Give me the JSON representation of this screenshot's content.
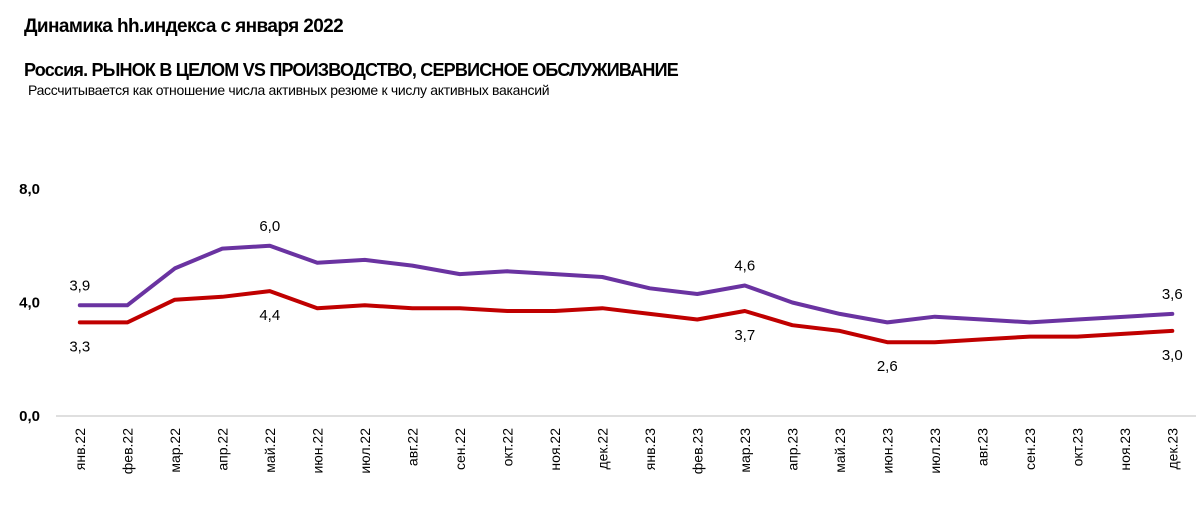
{
  "header": {
    "title": "Динамика hh.индекса с января 2022",
    "subtitle": "Россия. РЫНОК В ЦЕЛОМ VS ПРОИЗВОДСТВО, СЕРВИСНОЕ ОБСЛУЖИВАНИЕ",
    "note": "Рассчитывается как отношение числа активных резюме к числу активных вакансий"
  },
  "chart_data": {
    "type": "line",
    "title": "Динамика hh.индекса с января 2022",
    "xlabel": "",
    "ylabel": "",
    "ylim": [
      0,
      8
    ],
    "yticks": [
      "0,0",
      "4,0",
      "8,0"
    ],
    "categories": [
      "янв.22",
      "фев.22",
      "мар.22",
      "апр.22",
      "май.22",
      "июн.22",
      "июл.22",
      "авг.22",
      "сен.22",
      "окт.22",
      "ноя.22",
      "дек.22",
      "янв.23",
      "фев.23",
      "мар.23",
      "апр.23",
      "май.23",
      "июн.23",
      "июл.23",
      "авг.23",
      "сен.23",
      "окт.23",
      "ноя.23",
      "дек.23"
    ],
    "series": [
      {
        "name": "Рынок в целом",
        "color": "#6a33a1",
        "values": [
          3.9,
          3.9,
          5.2,
          5.9,
          6.0,
          5.4,
          5.5,
          5.3,
          5.0,
          5.1,
          5.0,
          4.9,
          4.5,
          4.3,
          4.6,
          4.0,
          3.6,
          3.3,
          3.5,
          3.4,
          3.3,
          3.4,
          3.5,
          3.6
        ]
      },
      {
        "name": "Производство, сервисное обслуживание",
        "color": "#c00000",
        "values": [
          3.3,
          3.3,
          4.1,
          4.2,
          4.4,
          3.8,
          3.9,
          3.8,
          3.8,
          3.7,
          3.7,
          3.8,
          3.6,
          3.4,
          3.7,
          3.2,
          3.0,
          2.6,
          2.6,
          2.7,
          2.8,
          2.8,
          2.9,
          3.0
        ]
      }
    ],
    "annotations": [
      {
        "text": "3,9",
        "series": 0,
        "index": 0,
        "pos": "above"
      },
      {
        "text": "6,0",
        "series": 0,
        "index": 4,
        "pos": "above"
      },
      {
        "text": "4,6",
        "series": 0,
        "index": 14,
        "pos": "above"
      },
      {
        "text": "3,6",
        "series": 0,
        "index": 23,
        "pos": "above"
      },
      {
        "text": "3,3",
        "series": 1,
        "index": 0,
        "pos": "below"
      },
      {
        "text": "4,4",
        "series": 1,
        "index": 4,
        "pos": "below"
      },
      {
        "text": "3,7",
        "series": 1,
        "index": 14,
        "pos": "below"
      },
      {
        "text": "2,6",
        "series": 1,
        "index": 17,
        "pos": "below"
      },
      {
        "text": "3,0",
        "series": 1,
        "index": 23,
        "pos": "below"
      }
    ]
  }
}
